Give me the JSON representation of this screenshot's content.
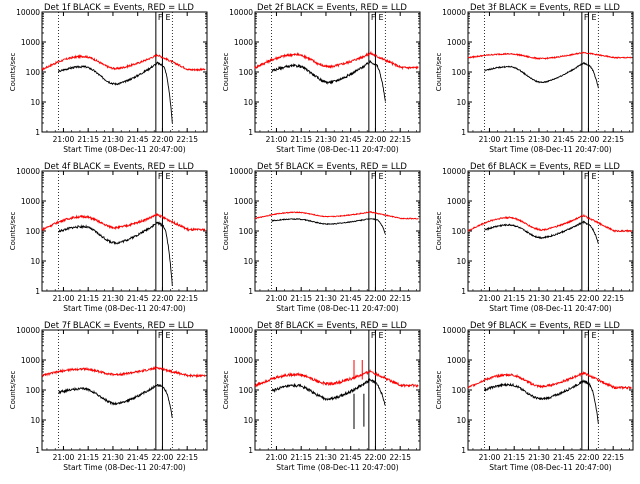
{
  "figure": {
    "xlabel": "Start Time (08-Dec-11 20:47:00)",
    "ylabel": "Counts/sec"
  },
  "chart_data": [
    {
      "type": "line",
      "title": "Det 1f BLACK = Events, RED = LLD",
      "xlabel": "Start Time (08-Dec-11 20:47:00)",
      "ylabel": "Counts/sec",
      "y_scale": "log",
      "ylim": [
        1,
        10000
      ],
      "yticks": [
        "1",
        "10",
        "100",
        "1000",
        "10000"
      ],
      "xticks": [
        "21:00",
        "21:15",
        "21:30",
        "21:45",
        "22:00",
        "22:15"
      ],
      "vlines_dotted": [
        "20:57",
        "22:06"
      ],
      "vlines_solid": [
        "21:56",
        "22:00"
      ],
      "region_labels": [
        "F",
        "E"
      ],
      "lld_start": "20:47",
      "events_start": "20:57",
      "events_end": "22:06",
      "red_base": 120,
      "red_peak1": 330,
      "red_trough": 130,
      "red_peak2": 370,
      "black_base": 60,
      "black_peak1": 150,
      "black_trough": 40,
      "black_peak2": 200,
      "black_end": 2,
      "spikes": [],
      "noise": 0.06
    },
    {
      "type": "line",
      "title": "Det 2f BLACK = Events, RED = LLD",
      "xlabel": "Start Time (08-Dec-11 20:47:00)",
      "ylabel": "Counts/sec",
      "y_scale": "log",
      "ylim": [
        1,
        10000
      ],
      "yticks": [
        "1",
        "10",
        "100",
        "1000",
        "10000"
      ],
      "xticks": [
        "21:00",
        "21:15",
        "21:30",
        "21:45",
        "22:00",
        "22:15"
      ],
      "vlines_dotted": [
        "20:57",
        "22:06"
      ],
      "vlines_solid": [
        "21:56",
        "22:00"
      ],
      "region_labels": [
        "F",
        "E"
      ],
      "lld_start": "20:47",
      "events_start": "20:57",
      "events_end": "22:06",
      "red_base": 140,
      "red_peak1": 380,
      "red_trough": 150,
      "red_peak2": 420,
      "black_base": 60,
      "black_peak1": 160,
      "black_trough": 45,
      "black_peak2": 220,
      "black_end": 10,
      "spikes": [],
      "noise": 0.08
    },
    {
      "type": "line",
      "title": "Det 3f BLACK = Events, RED = LLD",
      "xlabel": "Start Time (08-Dec-11 20:47:00)",
      "ylabel": "Counts/sec",
      "y_scale": "log",
      "ylim": [
        1,
        10000
      ],
      "yticks": [
        "1",
        "10",
        "100",
        "1000",
        "10000"
      ],
      "xticks": [
        "21:00",
        "21:15",
        "21:30",
        "21:45",
        "22:00",
        "22:15"
      ],
      "vlines_dotted": [
        "20:57",
        "22:06"
      ],
      "vlines_solid": [
        "21:56",
        "22:00"
      ],
      "region_labels": [
        "F",
        "E"
      ],
      "lld_start": "20:47",
      "events_start": "20:57",
      "events_end": "22:06",
      "red_base": 300,
      "red_peak1": 400,
      "red_trough": 280,
      "red_peak2": 450,
      "black_base": 70,
      "black_peak1": 150,
      "black_trough": 45,
      "black_peak2": 200,
      "black_end": 30,
      "spikes": [],
      "noise": 0.04
    },
    {
      "type": "line",
      "title": "Det 4f BLACK = Events, RED = LLD",
      "xlabel": "Start Time (08-Dec-11 20:47:00)",
      "ylabel": "Counts/sec",
      "y_scale": "log",
      "ylim": [
        1,
        10000
      ],
      "yticks": [
        "1",
        "10",
        "100",
        "1000",
        "10000"
      ],
      "xticks": [
        "21:00",
        "21:15",
        "21:30",
        "21:45",
        "22:00",
        "22:15"
      ],
      "vlines_dotted": [
        "20:57",
        "22:06"
      ],
      "vlines_solid": [
        "21:56",
        "22:00"
      ],
      "region_labels": [
        "F",
        "E"
      ],
      "lld_start": "20:47",
      "events_start": "20:57",
      "events_end": "22:06",
      "red_base": 110,
      "red_peak1": 300,
      "red_trough": 130,
      "red_peak2": 350,
      "black_base": 55,
      "black_peak1": 140,
      "black_trough": 40,
      "black_peak2": 190,
      "black_end": 1.5,
      "spikes": [],
      "noise": 0.07
    },
    {
      "type": "line",
      "title": "Det 5f BLACK = Events, RED = LLD",
      "xlabel": "Start Time (08-Dec-11 20:47:00)",
      "ylabel": "Counts/sec",
      "y_scale": "log",
      "ylim": [
        1,
        10000
      ],
      "yticks": [
        "1",
        "10",
        "100",
        "1000",
        "10000"
      ],
      "xticks": [
        "21:00",
        "21:15",
        "21:30",
        "21:45",
        "22:00",
        "22:15"
      ],
      "vlines_dotted": [
        "20:57",
        "22:06"
      ],
      "vlines_solid": [
        "21:56",
        "22:00"
      ],
      "region_labels": [
        "F",
        "E"
      ],
      "lld_start": "20:47",
      "events_start": "20:57",
      "events_end": "22:06",
      "red_base": 260,
      "red_peak1": 420,
      "red_trough": 300,
      "red_peak2": 430,
      "black_base": 180,
      "black_peak1": 250,
      "black_trough": 170,
      "black_peak2": 260,
      "black_end": 80,
      "spikes": [],
      "noise": 0.03
    },
    {
      "type": "line",
      "title": "Det 6f BLACK = Events, RED = LLD",
      "xlabel": "Start Time (08-Dec-11 20:47:00)",
      "ylabel": "Counts/sec",
      "y_scale": "log",
      "ylim": [
        1,
        10000
      ],
      "yticks": [
        "1",
        "10",
        "100",
        "1000",
        "10000"
      ],
      "xticks": [
        "21:00",
        "21:15",
        "21:30",
        "21:45",
        "22:00",
        "22:15"
      ],
      "vlines_dotted": [
        "20:57",
        "22:06"
      ],
      "vlines_solid": [
        "21:56",
        "22:00"
      ],
      "region_labels": [
        "F",
        "E"
      ],
      "lld_start": "20:47",
      "events_start": "20:57",
      "events_end": "22:06",
      "red_base": 100,
      "red_peak1": 280,
      "red_trough": 110,
      "red_peak2": 330,
      "black_base": 60,
      "black_peak1": 160,
      "black_trough": 60,
      "black_peak2": 200,
      "black_end": 40,
      "spikes": [],
      "noise": 0.05
    },
    {
      "type": "line",
      "title": "Det 7f BLACK = Events, RED = LLD",
      "xlabel": "Start Time (08-Dec-11 20:47:00)",
      "ylabel": "Counts/sec",
      "y_scale": "log",
      "ylim": [
        1,
        10000
      ],
      "yticks": [
        "1",
        "10",
        "100",
        "1000",
        "10000"
      ],
      "xticks": [
        "21:00",
        "21:15",
        "21:30",
        "21:45",
        "22:00",
        "22:15"
      ],
      "vlines_dotted": [
        "20:57",
        "22:06"
      ],
      "vlines_solid": [
        "21:56",
        "22:00"
      ],
      "region_labels": [
        "F",
        "E"
      ],
      "lld_start": "20:47",
      "events_start": "20:57",
      "events_end": "22:06",
      "red_base": 300,
      "red_peak1": 500,
      "red_trough": 330,
      "red_peak2": 550,
      "black_base": 55,
      "black_peak1": 110,
      "black_trough": 35,
      "black_peak2": 150,
      "black_end": 12,
      "spikes": [],
      "noise": 0.07
    },
    {
      "type": "line",
      "title": "Det 8f BLACK = Events, RED = LLD",
      "xlabel": "Start Time (08-Dec-11 20:47:00)",
      "ylabel": "Counts/sec",
      "y_scale": "log",
      "ylim": [
        1,
        10000
      ],
      "yticks": [
        "1",
        "10",
        "100",
        "1000",
        "10000"
      ],
      "xticks": [
        "21:00",
        "21:15",
        "21:30",
        "21:45",
        "22:00",
        "22:15"
      ],
      "vlines_dotted": [
        "20:57",
        "22:06"
      ],
      "vlines_solid": [
        "21:56",
        "22:00"
      ],
      "region_labels": [
        "F",
        "E"
      ],
      "lld_start": "20:47",
      "events_start": "20:57",
      "events_end": "22:06",
      "red_base": 140,
      "red_peak1": 330,
      "red_trough": 160,
      "red_peak2": 420,
      "black_base": 50,
      "black_peak1": 140,
      "black_trough": 50,
      "black_peak2": 220,
      "black_end": 30,
      "spikes": [
        {
          "series": "red",
          "time": "21:47",
          "value": 1000
        },
        {
          "series": "red",
          "time": "21:52",
          "value": 1000
        },
        {
          "series": "black",
          "time": "21:47",
          "value": 5
        },
        {
          "series": "black",
          "time": "21:53",
          "value": 6
        }
      ],
      "noise": 0.09
    },
    {
      "type": "line",
      "title": "Det 9f BLACK = Events, RED = LLD",
      "xlabel": "Start Time (08-Dec-11 20:47:00)",
      "ylabel": "Counts/sec",
      "y_scale": "log",
      "ylim": [
        1,
        10000
      ],
      "yticks": [
        "1",
        "10",
        "100",
        "1000",
        "10000"
      ],
      "xticks": [
        "21:00",
        "21:15",
        "21:30",
        "21:45",
        "22:00",
        "22:15"
      ],
      "vlines_dotted": [
        "20:57",
        "22:06"
      ],
      "vlines_solid": [
        "21:56",
        "22:00"
      ],
      "region_labels": [
        "F",
        "E"
      ],
      "lld_start": "20:47",
      "events_start": "20:57",
      "events_end": "22:06",
      "red_base": 120,
      "red_peak1": 320,
      "red_trough": 130,
      "red_peak2": 370,
      "black_base": 55,
      "black_peak1": 150,
      "black_trough": 50,
      "black_peak2": 200,
      "black_end": 8,
      "spikes": [],
      "noise": 0.07
    }
  ]
}
